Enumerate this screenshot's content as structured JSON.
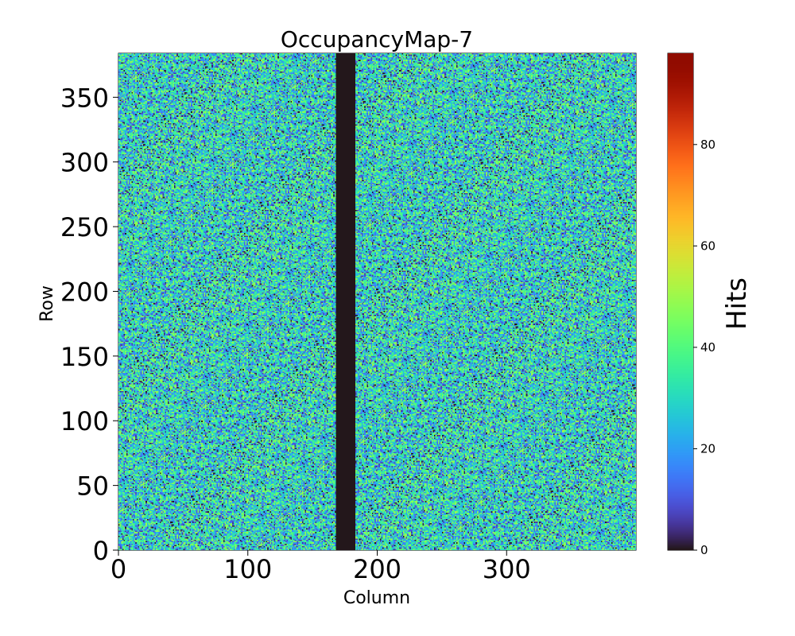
{
  "chart_data": {
    "type": "heatmap",
    "title": "OccupancyMap-7",
    "xlabel": "Column",
    "ylabel": "Row",
    "xlim": [
      0,
      400
    ],
    "ylim": [
      0,
      384
    ],
    "n_columns": 400,
    "n_rows": 384,
    "x_ticks": [
      0,
      100,
      200,
      300
    ],
    "y_ticks": [
      0,
      50,
      100,
      150,
      200,
      250,
      300,
      350
    ],
    "colormap": "turbo",
    "dead_columns": [
      168,
      183
    ],
    "value_distribution": {
      "min": 0,
      "max": 50,
      "mean": 30
    },
    "colorbar": {
      "label": "Hits",
      "range": [
        0,
        98
      ],
      "ticks": [
        0,
        20,
        40,
        60,
        80
      ]
    }
  }
}
